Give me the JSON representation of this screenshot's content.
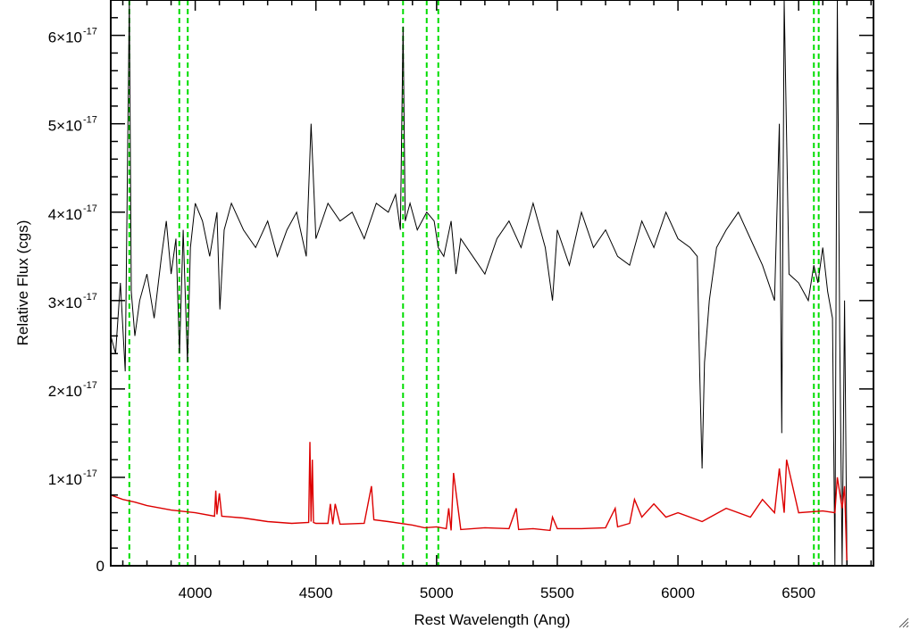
{
  "chart_data": {
    "type": "line",
    "title": "",
    "xlabel": "Rest Wavelength (Ang)",
    "ylabel": "Relative Flux (cgs)",
    "xlim": [
      3650,
      6810
    ],
    "ylim": [
      0,
      6.4e-17
    ],
    "x_ticks": [
      {
        "value": 4000,
        "label": "4000"
      },
      {
        "value": 4500,
        "label": "4500"
      },
      {
        "value": 5000,
        "label": "5000"
      },
      {
        "value": 5500,
        "label": "5500"
      },
      {
        "value": 6000,
        "label": "6000"
      },
      {
        "value": 6500,
        "label": "6500"
      }
    ],
    "y_ticks": [
      {
        "value": 0,
        "label": "0",
        "exp": ""
      },
      {
        "value": 1e-17,
        "label": "1×10",
        "exp": "-17"
      },
      {
        "value": 2e-17,
        "label": "2×10",
        "exp": "-17"
      },
      {
        "value": 3e-17,
        "label": "3×10",
        "exp": "-17"
      },
      {
        "value": 4e-17,
        "label": "4×10",
        "exp": "-17"
      },
      {
        "value": 5e-17,
        "label": "5×10",
        "exp": "-17"
      },
      {
        "value": 6e-17,
        "label": "6×10",
        "exp": "-17"
      }
    ],
    "grid": false,
    "series": [
      {
        "color": "#000000",
        "x": [
          3650,
          3670,
          3690,
          3710,
          3727,
          3735,
          3750,
          3770,
          3800,
          3830,
          3860,
          3880,
          3900,
          3920,
          3935,
          3950,
          3968,
          3980,
          4000,
          4030,
          4060,
          4090,
          4102,
          4120,
          4150,
          4200,
          4250,
          4300,
          4340,
          4380,
          4420,
          4460,
          4480,
          4500,
          4550,
          4600,
          4650,
          4700,
          4750,
          4800,
          4830,
          4850,
          4861,
          4870,
          4890,
          4920,
          4959,
          4990,
          5007,
          5030,
          5060,
          5080,
          5100,
          5150,
          5200,
          5250,
          5300,
          5350,
          5400,
          5450,
          5480,
          5500,
          5550,
          5600,
          5650,
          5700,
          5750,
          5800,
          5850,
          5900,
          5950,
          6000,
          6050,
          6080,
          6090,
          6100,
          6110,
          6130,
          6160,
          6200,
          6250,
          6300,
          6350,
          6400,
          6420,
          6430,
          6440,
          6460,
          6500,
          6540,
          6563,
          6580,
          6600,
          6620,
          6640,
          6650,
          6660,
          6670,
          6680,
          6690,
          6700
        ],
        "y": [
          2.6e-17,
          2.4e-17,
          3.2e-17,
          2.2e-17,
          6.8e-17,
          3.1e-17,
          2.6e-17,
          3e-17,
          3.3e-17,
          2.8e-17,
          3.5e-17,
          3.9e-17,
          3.3e-17,
          3.7e-17,
          2.4e-17,
          3.8e-17,
          2.3e-17,
          3.6e-17,
          4.1e-17,
          3.9e-17,
          3.5e-17,
          4e-17,
          2.9e-17,
          3.8e-17,
          4.1e-17,
          3.8e-17,
          3.6e-17,
          3.9e-17,
          3.5e-17,
          3.8e-17,
          4e-17,
          3.5e-17,
          5e-17,
          3.7e-17,
          4.1e-17,
          3.9e-17,
          4e-17,
          3.7e-17,
          4.1e-17,
          4e-17,
          4.2e-17,
          3.8e-17,
          6.1e-17,
          3.9e-17,
          4.1e-17,
          3.8e-17,
          4e-17,
          3.9e-17,
          3.6e-17,
          3.5e-17,
          3.9e-17,
          3.3e-17,
          3.7e-17,
          3.5e-17,
          3.3e-17,
          3.7e-17,
          3.9e-17,
          3.6e-17,
          4.1e-17,
          3.6e-17,
          3e-17,
          3.8e-17,
          3.4e-17,
          4e-17,
          3.6e-17,
          3.8e-17,
          3.5e-17,
          3.4e-17,
          3.9e-17,
          3.6e-17,
          4e-17,
          3.7e-17,
          3.6e-17,
          3.5e-17,
          2.2e-17,
          1.1e-17,
          2.3e-17,
          3e-17,
          3.6e-17,
          3.8e-17,
          4e-17,
          3.7e-17,
          3.4e-17,
          3e-17,
          5e-17,
          1.5e-17,
          6.6e-17,
          3.3e-17,
          3.2e-17,
          3e-17,
          3.4e-17,
          3.2e-17,
          3.6e-17,
          3.1e-17,
          2.8e-17,
          0.0,
          6.6e-17,
          2.6e-17,
          0.0,
          3e-17,
          0.0
        ]
      },
      {
        "color": "#dd0000",
        "x": [
          3650,
          3700,
          3750,
          3800,
          3900,
          4000,
          4080,
          4085,
          4090,
          4100,
          4110,
          4200,
          4300,
          4400,
          4470,
          4475,
          4480,
          4485,
          4490,
          4500,
          4550,
          4560,
          4570,
          4580,
          4600,
          4700,
          4730,
          4740,
          4800,
          4900,
          4950,
          5000,
          5040,
          5050,
          5060,
          5070,
          5100,
          5200,
          5300,
          5330,
          5340,
          5400,
          5470,
          5480,
          5500,
          5600,
          5700,
          5740,
          5750,
          5800,
          5820,
          5850,
          5900,
          5950,
          6000,
          6100,
          6200,
          6300,
          6350,
          6400,
          6420,
          6440,
          6450,
          6500,
          6600,
          6650,
          6660,
          6680,
          6690,
          6700,
          6810
        ],
        "y": [
          8e-18,
          7.5e-18,
          7.2e-18,
          6.8e-18,
          6.3e-18,
          6e-18,
          5.6e-18,
          8.5e-18,
          5.8e-18,
          8.2e-18,
          5.6e-18,
          5.4e-18,
          5e-18,
          4.8e-18,
          4.9e-18,
          1.4e-17,
          5e-18,
          1.2e-17,
          4.9e-18,
          4.8e-18,
          4.8e-18,
          7e-18,
          4.7e-18,
          7e-18,
          4.7e-18,
          4.8e-18,
          9e-18,
          5.2e-18,
          5e-18,
          4.6e-18,
          4.3e-18,
          4.4e-18,
          4.2e-18,
          6.5e-18,
          4e-18,
          1.05e-17,
          4.1e-18,
          4.3e-18,
          4.2e-18,
          6.5e-18,
          4.1e-18,
          4.2e-18,
          4e-18,
          5.5e-18,
          4.2e-18,
          4.2e-18,
          4.3e-18,
          6.5e-18,
          4.4e-18,
          4.8e-18,
          7.5e-18,
          5.5e-18,
          7e-18,
          5.5e-18,
          6e-18,
          5e-18,
          6.5e-18,
          5.5e-18,
          7.5e-18,
          6e-18,
          1.1e-17,
          6e-18,
          1.2e-17,
          6e-18,
          6.2e-18,
          6e-18,
          1e-17,
          6.5e-18,
          9e-18,
          0.0,
          0.0
        ]
      }
    ],
    "reference_lines": {
      "color": "#00dd00",
      "style": "dashed",
      "x": [
        3727,
        3934,
        3969,
        4861,
        4959,
        5007,
        6563,
        6583
      ]
    }
  }
}
